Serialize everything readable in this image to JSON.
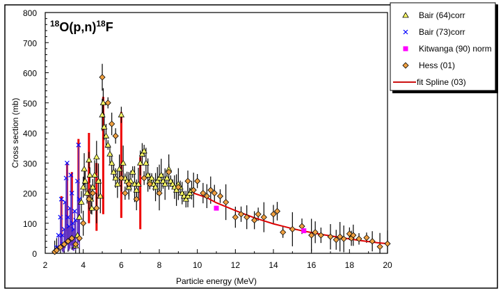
{
  "chart_data": {
    "type": "scatter",
    "title_parts": {
      "sup1": "18",
      "main1": "O(p,n)",
      "sup2": "18",
      "main2": "F"
    },
    "xlabel": "Particle energy (MeV)",
    "ylabel": "Cross section (mb)",
    "xlim": [
      2,
      20
    ],
    "ylim": [
      0,
      800
    ],
    "xticks": [
      "2",
      "4",
      "6",
      "8",
      "10",
      "12",
      "14",
      "16",
      "18",
      "20"
    ],
    "yticks": [
      "0",
      "100",
      "200",
      "300",
      "400",
      "500",
      "600",
      "700",
      "800"
    ],
    "grid": false,
    "legend_position": "top-right-outside",
    "series": [
      {
        "name": "Bair (64)corr",
        "marker": "triangle",
        "color": "#ffff66",
        "points": [
          [
            3.6,
            25
          ],
          [
            3.7,
            60
          ],
          [
            3.8,
            120
          ],
          [
            3.9,
            170
          ],
          [
            4.0,
            220
          ],
          [
            4.05,
            280
          ],
          [
            4.1,
            240
          ],
          [
            4.2,
            200
          ],
          [
            4.3,
            310
          ],
          [
            4.35,
            260
          ],
          [
            4.4,
            180
          ],
          [
            4.45,
            150
          ],
          [
            4.5,
            220
          ],
          [
            4.6,
            260
          ],
          [
            4.7,
            320
          ],
          [
            4.8,
            240
          ],
          [
            4.9,
            190
          ],
          [
            5.0,
            460
          ],
          [
            5.05,
            500
          ],
          [
            5.1,
            420
          ],
          [
            5.2,
            390
          ],
          [
            5.3,
            360
          ],
          [
            5.4,
            330
          ],
          [
            5.5,
            300
          ],
          [
            5.6,
            270
          ],
          [
            5.7,
            250
          ],
          [
            5.8,
            230
          ],
          [
            5.9,
            280
          ],
          [
            6.0,
            460
          ],
          [
            6.1,
            300
          ],
          [
            6.2,
            250
          ],
          [
            6.3,
            240
          ],
          [
            6.4,
            220
          ],
          [
            6.5,
            240
          ],
          [
            6.6,
            270
          ],
          [
            6.7,
            230
          ],
          [
            6.8,
            210
          ],
          [
            6.9,
            230
          ],
          [
            7.0,
            300
          ],
          [
            7.1,
            330
          ],
          [
            7.2,
            340
          ],
          [
            7.3,
            300
          ],
          [
            7.4,
            260
          ],
          [
            7.5,
            240
          ],
          [
            7.6,
            250
          ],
          [
            7.7,
            230
          ],
          [
            7.8,
            220
          ],
          [
            7.9,
            240
          ],
          [
            8.0,
            250
          ],
          [
            8.1,
            260
          ],
          [
            8.2,
            240
          ],
          [
            8.3,
            230
          ],
          [
            8.4,
            250
          ],
          [
            8.5,
            280
          ],
          [
            8.6,
            240
          ],
          [
            8.7,
            230
          ],
          [
            8.8,
            220
          ],
          [
            8.9,
            210
          ],
          [
            9.0,
            230
          ],
          [
            9.1,
            220
          ],
          [
            9.2,
            200
          ],
          [
            9.3,
            190
          ],
          [
            9.4,
            180
          ],
          [
            9.5,
            190
          ],
          [
            9.6,
            200
          ],
          [
            9.7,
            210
          ]
        ]
      },
      {
        "name": "Bair (73)corr",
        "marker": "x",
        "color": "#0000ff",
        "points": [
          [
            2.6,
            20
          ],
          [
            2.7,
            60
          ],
          [
            2.8,
            120
          ],
          [
            2.85,
            180
          ],
          [
            2.9,
            60
          ],
          [
            2.95,
            30
          ],
          [
            3.0,
            80
          ],
          [
            3.05,
            170
          ],
          [
            3.1,
            250
          ],
          [
            3.15,
            300
          ],
          [
            3.2,
            120
          ],
          [
            3.25,
            90
          ],
          [
            3.3,
            150
          ],
          [
            3.35,
            260
          ],
          [
            3.4,
            200
          ],
          [
            3.45,
            100
          ],
          [
            3.5,
            80
          ],
          [
            3.55,
            140
          ],
          [
            3.6,
            110
          ],
          [
            3.7,
            240
          ],
          [
            3.75,
            360
          ],
          [
            3.8,
            180
          ]
        ]
      },
      {
        "name": "Kitwanga (90) norm",
        "marker": "square",
        "color": "#ff00ff",
        "points": [
          [
            11.0,
            150
          ],
          [
            15.6,
            75
          ]
        ]
      },
      {
        "name": "Hess (01)",
        "marker": "diamond",
        "color": "#f0a040",
        "points": [
          [
            2.5,
            5
          ],
          [
            2.6,
            10
          ],
          [
            2.8,
            20
          ],
          [
            3.0,
            30
          ],
          [
            3.2,
            40
          ],
          [
            3.4,
            50
          ],
          [
            3.6,
            30
          ],
          [
            3.8,
            50
          ],
          [
            4.0,
            100
          ],
          [
            4.3,
            180
          ],
          [
            4.5,
            200
          ],
          [
            4.7,
            150
          ],
          [
            5.0,
            585
          ],
          [
            5.3,
            500
          ],
          [
            5.5,
            430
          ],
          [
            5.7,
            390
          ],
          [
            6.0,
            250
          ],
          [
            6.2,
            200
          ],
          [
            6.4,
            230
          ],
          [
            6.8,
            180
          ],
          [
            7.2,
            250
          ],
          [
            7.5,
            230
          ],
          [
            8.0,
            200
          ],
          [
            8.5,
            270
          ],
          [
            9.0,
            220
          ],
          [
            9.5,
            240
          ],
          [
            9.8,
            210
          ],
          [
            10.0,
            240
          ],
          [
            10.3,
            200
          ],
          [
            10.5,
            190
          ],
          [
            10.7,
            210
          ],
          [
            10.9,
            200
          ],
          [
            11.2,
            190
          ],
          [
            11.5,
            170
          ],
          [
            12.0,
            120
          ],
          [
            12.3,
            130
          ],
          [
            12.6,
            120
          ],
          [
            13.0,
            110
          ],
          [
            13.2,
            130
          ],
          [
            13.5,
            120
          ],
          [
            14.0,
            130
          ],
          [
            14.2,
            140
          ],
          [
            14.5,
            70
          ],
          [
            15.0,
            80
          ],
          [
            15.5,
            90
          ],
          [
            16.0,
            60
          ],
          [
            16.2,
            70
          ],
          [
            16.5,
            60
          ],
          [
            17.0,
            55
          ],
          [
            17.3,
            45
          ],
          [
            17.5,
            55
          ],
          [
            17.7,
            48
          ],
          [
            18.0,
            65
          ],
          [
            18.1,
            50
          ],
          [
            18.2,
            60
          ],
          [
            18.5,
            48
          ],
          [
            18.9,
            52
          ],
          [
            19.2,
            40
          ],
          [
            19.6,
            22
          ],
          [
            20.0,
            32
          ]
        ]
      },
      {
        "name": "fit Spline (03)",
        "marker": "line",
        "color": "#dd0000",
        "points": [
          [
            9.8,
            200
          ],
          [
            10.5,
            185
          ],
          [
            11.0,
            168
          ],
          [
            11.5,
            155
          ],
          [
            12.0,
            142
          ],
          [
            12.5,
            130
          ],
          [
            13.0,
            118
          ],
          [
            13.5,
            108
          ],
          [
            14.0,
            98
          ],
          [
            14.5,
            90
          ],
          [
            15.0,
            82
          ],
          [
            15.5,
            75
          ],
          [
            16.0,
            69
          ],
          [
            16.5,
            63
          ],
          [
            17.0,
            58
          ],
          [
            17.5,
            53
          ],
          [
            18.0,
            48
          ],
          [
            18.5,
            43
          ],
          [
            19.0,
            39
          ],
          [
            19.5,
            35
          ],
          [
            20.0,
            32
          ]
        ]
      }
    ],
    "spline_low_energy_peaks": [
      [
        2.85,
        190
      ],
      [
        3.15,
        300
      ],
      [
        3.4,
        270
      ],
      [
        3.75,
        380
      ],
      [
        4.3,
        400
      ],
      [
        4.7,
        300
      ],
      [
        5.05,
        520
      ],
      [
        6.0,
        470
      ],
      [
        7.0,
        320
      ]
    ]
  }
}
